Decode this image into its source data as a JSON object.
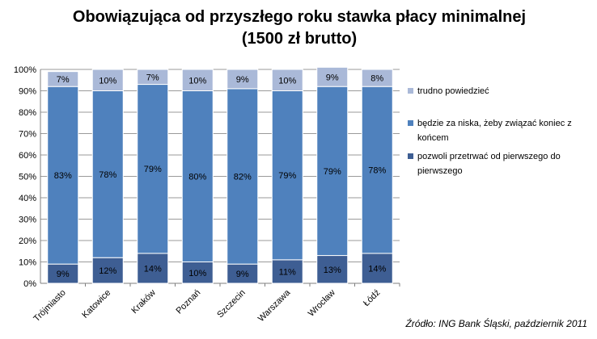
{
  "title": {
    "line1": "Obowiązująca od przyszłego roku stawka płacy minimalnej",
    "line2": "(1500 zł brutto)"
  },
  "source": "Źródło: ING Bank Śląski, październik 2011",
  "chart_data": {
    "type": "bar",
    "stacked": true,
    "percent_stacked": true,
    "categories": [
      "Trójmiasto",
      "Katowice",
      "Kraków",
      "Poznań",
      "Szczecin",
      "Warszawa",
      "Wrocław",
      "Łódź"
    ],
    "series": [
      {
        "name": "pozwoli przetrwać od pierwszego do pierwszego",
        "values": [
          9,
          12,
          14,
          10,
          9,
          11,
          13,
          14
        ],
        "color": "#3e5e93"
      },
      {
        "name": "będzie za niska, żeby związać koniec z końcem",
        "values": [
          83,
          78,
          79,
          80,
          82,
          79,
          79,
          78
        ],
        "color": "#4f81bd"
      },
      {
        "name": "trudno powiedzieć",
        "values": [
          7,
          10,
          7,
          10,
          9,
          10,
          9,
          8
        ],
        "color": "#aab9d8"
      }
    ],
    "ylim": [
      0,
      100
    ],
    "yticks": [
      "0%",
      "10%",
      "20%",
      "30%",
      "40%",
      "50%",
      "60%",
      "70%",
      "80%",
      "90%",
      "100%"
    ],
    "grid": true,
    "legend_position": "right"
  }
}
